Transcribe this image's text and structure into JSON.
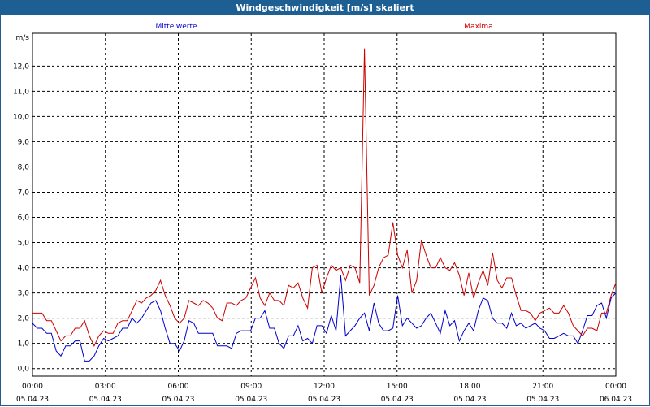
{
  "window": {
    "title": "Windgeschwindigkeit [m/s] skaliert"
  },
  "colors": {
    "mean": "#0000cc",
    "max": "#cc0000",
    "titlebar": "#1d5f93"
  },
  "chart_data": {
    "type": "line",
    "title": "Windgeschwindigkeit [m/s] skaliert",
    "ylabel": "m/s",
    "ylim": [
      -0.3,
      13.3
    ],
    "xlim_hours": [
      0,
      24
    ],
    "grid": true,
    "yticks": [
      "0,0",
      "1,0",
      "2,0",
      "3,0",
      "4,0",
      "5,0",
      "6,0",
      "7,0",
      "8,0",
      "9,0",
      "10,0",
      "11,0",
      "12,0"
    ],
    "xticks": [
      {
        "time": "00:00",
        "date": "05.04.23"
      },
      {
        "time": "03:00",
        "date": "05.04.23"
      },
      {
        "time": "06:00",
        "date": "05.04.23"
      },
      {
        "time": "09:00",
        "date": "05.04.23"
      },
      {
        "time": "12:00",
        "date": "05.04.23"
      },
      {
        "time": "15:00",
        "date": "05.04.23"
      },
      {
        "time": "18:00",
        "date": "05.04.23"
      },
      {
        "time": "21:00",
        "date": "05.04.23"
      },
      {
        "time": "00:00",
        "date": "06.04.23"
      }
    ],
    "series": [
      {
        "name": "Mittelwerte",
        "color": "#0000cc",
        "points": [
          [
            0,
            1.8
          ],
          [
            0.2,
            1.6
          ],
          [
            0.4,
            1.6
          ],
          [
            0.6,
            1.4
          ],
          [
            0.8,
            1.4
          ],
          [
            1,
            0.7
          ],
          [
            1.2,
            0.5
          ],
          [
            1.4,
            0.9
          ],
          [
            1.6,
            0.9
          ],
          [
            1.8,
            1.1
          ],
          [
            2,
            1.1
          ],
          [
            2.2,
            0.3
          ],
          [
            2.4,
            0.3
          ],
          [
            2.6,
            0.5
          ],
          [
            2.8,
            0.9
          ],
          [
            3,
            1.2
          ],
          [
            3.2,
            1.1
          ],
          [
            3.4,
            1.2
          ],
          [
            3.6,
            1.3
          ],
          [
            3.8,
            1.6
          ],
          [
            4,
            1.6
          ],
          [
            4.2,
            2.0
          ],
          [
            4.4,
            1.8
          ],
          [
            4.6,
            2.0
          ],
          [
            4.8,
            2.3
          ],
          [
            5,
            2.6
          ],
          [
            5.2,
            2.7
          ],
          [
            5.4,
            2.3
          ],
          [
            5.6,
            1.6
          ],
          [
            5.8,
            1.0
          ],
          [
            6,
            1.0
          ],
          [
            6.2,
            0.7
          ],
          [
            6.4,
            1.1
          ],
          [
            6.6,
            1.9
          ],
          [
            6.8,
            1.8
          ],
          [
            7,
            1.4
          ],
          [
            7.2,
            1.4
          ],
          [
            7.4,
            1.4
          ],
          [
            7.6,
            1.4
          ],
          [
            7.8,
            0.9
          ],
          [
            8,
            0.9
          ],
          [
            8.2,
            0.9
          ],
          [
            8.4,
            0.8
          ],
          [
            8.6,
            1.4
          ],
          [
            8.8,
            1.5
          ],
          [
            9,
            1.5
          ],
          [
            9.2,
            1.5
          ],
          [
            9.4,
            2.0
          ],
          [
            9.6,
            2.0
          ],
          [
            9.8,
            2.3
          ],
          [
            10,
            1.6
          ],
          [
            10,
            1.6
          ],
          [
            10.2,
            1.6
          ],
          [
            10.4,
            1.0
          ],
          [
            10.6,
            0.8
          ],
          [
            10.8,
            1.3
          ],
          [
            11,
            1.3
          ],
          [
            11.2,
            1.7
          ],
          [
            11.4,
            1.1
          ],
          [
            11.6,
            1.2
          ],
          [
            11.8,
            1.0
          ],
          [
            12,
            1.7
          ],
          [
            12.2,
            1.7
          ],
          [
            12.4,
            1.4
          ],
          [
            12.6,
            2.1
          ],
          [
            12.8,
            1.5
          ],
          [
            13,
            3.7
          ],
          [
            13.2,
            1.3
          ],
          [
            13.4,
            1.5
          ],
          [
            13.6,
            1.7
          ],
          [
            13.8,
            2.0
          ],
          [
            14,
            2.2
          ],
          [
            14.2,
            1.5
          ],
          [
            14.4,
            2.6
          ],
          [
            14.6,
            1.8
          ],
          [
            14.8,
            1.5
          ],
          [
            15,
            1.5
          ],
          [
            15.2,
            1.6
          ],
          [
            15.4,
            2.9
          ],
          [
            15.6,
            1.7
          ],
          [
            15.8,
            2.0
          ],
          [
            16,
            1.8
          ],
          [
            16.2,
            1.6
          ],
          [
            16.4,
            1.7
          ],
          [
            16.6,
            2.0
          ],
          [
            16.8,
            2.2
          ],
          [
            17,
            1.8
          ],
          [
            17.2,
            1.4
          ],
          [
            17.4,
            2.3
          ],
          [
            17.6,
            1.7
          ],
          [
            17.8,
            1.9
          ],
          [
            18,
            1.1
          ],
          [
            18.2,
            1.5
          ],
          [
            18.4,
            1.8
          ],
          [
            18.6,
            1.5
          ],
          [
            18.8,
            2.3
          ],
          [
            19,
            2.8
          ],
          [
            19.2,
            2.7
          ],
          [
            19.4,
            2.0
          ],
          [
            19.6,
            1.8
          ],
          [
            19.8,
            1.8
          ],
          [
            20,
            1.6
          ],
          [
            20.2,
            2.2
          ],
          [
            20.4,
            1.7
          ],
          [
            20.6,
            1.8
          ],
          [
            20.8,
            1.6
          ],
          [
            21,
            1.7
          ],
          [
            21.2,
            1.8
          ],
          [
            21.4,
            1.6
          ],
          [
            21.6,
            1.5
          ],
          [
            21.8,
            1.2
          ],
          [
            22,
            1.2
          ],
          [
            22.2,
            1.3
          ],
          [
            22.4,
            1.4
          ],
          [
            22.6,
            1.3
          ],
          [
            22.8,
            1.3
          ],
          [
            23,
            1.0
          ],
          [
            23.2,
            1.5
          ],
          [
            23.4,
            2.1
          ],
          [
            23.6,
            2.1
          ],
          [
            23.8,
            2.5
          ],
          [
            24,
            2.6
          ],
          [
            24.2,
            2.0
          ],
          [
            24.4,
            2.8
          ],
          [
            24.6,
            3.0
          ]
        ]
      },
      {
        "name": "Maxima",
        "color": "#cc0000",
        "points": [
          [
            0,
            2.2
          ],
          [
            0.2,
            2.2
          ],
          [
            0.4,
            2.2
          ],
          [
            0.6,
            1.9
          ],
          [
            0.8,
            1.9
          ],
          [
            1,
            1.5
          ],
          [
            1.2,
            1.1
          ],
          [
            1.4,
            1.3
          ],
          [
            1.6,
            1.3
          ],
          [
            1.8,
            1.6
          ],
          [
            2,
            1.6
          ],
          [
            2.2,
            1.9
          ],
          [
            2.4,
            1.3
          ],
          [
            2.6,
            0.9
          ],
          [
            2.8,
            1.3
          ],
          [
            3,
            1.5
          ],
          [
            3.2,
            1.4
          ],
          [
            3.4,
            1.4
          ],
          [
            3.6,
            1.8
          ],
          [
            3.8,
            1.9
          ],
          [
            4,
            1.9
          ],
          [
            4.2,
            2.3
          ],
          [
            4.4,
            2.7
          ],
          [
            4.6,
            2.6
          ],
          [
            4.8,
            2.8
          ],
          [
            5,
            2.9
          ],
          [
            5.2,
            3.1
          ],
          [
            5.4,
            3.5
          ],
          [
            5.6,
            2.9
          ],
          [
            5.8,
            2.5
          ],
          [
            6,
            2.0
          ],
          [
            6.2,
            1.8
          ],
          [
            6.4,
            2.0
          ],
          [
            6.6,
            2.7
          ],
          [
            6.8,
            2.6
          ],
          [
            7,
            2.5
          ],
          [
            7.2,
            2.7
          ],
          [
            7.4,
            2.6
          ],
          [
            7.6,
            2.4
          ],
          [
            7.8,
            2.0
          ],
          [
            8,
            1.9
          ],
          [
            8.2,
            2.6
          ],
          [
            8.4,
            2.6
          ],
          [
            8.6,
            2.5
          ],
          [
            8.8,
            2.7
          ],
          [
            9,
            2.8
          ],
          [
            9.2,
            3.2
          ],
          [
            9.4,
            3.6
          ],
          [
            9.6,
            2.8
          ],
          [
            9.8,
            2.5
          ],
          [
            10,
            3.0
          ],
          [
            10.2,
            2.7
          ],
          [
            10.4,
            2.7
          ],
          [
            10.6,
            2.5
          ],
          [
            10.8,
            3.3
          ],
          [
            11,
            3.2
          ],
          [
            11.2,
            3.4
          ],
          [
            11.4,
            2.8
          ],
          [
            11.6,
            2.4
          ],
          [
            11.8,
            4.0
          ],
          [
            12,
            4.1
          ],
          [
            12.2,
            3.0
          ],
          [
            12.4,
            3.6
          ],
          [
            12.6,
            4.1
          ],
          [
            12.8,
            3.9
          ],
          [
            13,
            4.0
          ],
          [
            13.2,
            3.5
          ],
          [
            13.4,
            4.1
          ],
          [
            13.6,
            4.0
          ],
          [
            13.8,
            3.4
          ],
          [
            14,
            12.7
          ],
          [
            14.2,
            2.9
          ],
          [
            14.4,
            3.3
          ],
          [
            14.6,
            4.0
          ],
          [
            14.8,
            4.4
          ],
          [
            15,
            4.5
          ],
          [
            15.2,
            5.8
          ],
          [
            15.4,
            4.5
          ],
          [
            15.6,
            4.0
          ],
          [
            15.8,
            4.7
          ],
          [
            16,
            3.0
          ],
          [
            16.2,
            3.5
          ],
          [
            16.4,
            5.1
          ],
          [
            16.6,
            4.5
          ],
          [
            16.8,
            4.0
          ],
          [
            17,
            4.0
          ],
          [
            17.2,
            4.4
          ],
          [
            17.4,
            4.0
          ],
          [
            17.6,
            3.9
          ],
          [
            17.8,
            4.2
          ],
          [
            18,
            3.7
          ],
          [
            18.2,
            2.9
          ],
          [
            18.4,
            3.8
          ],
          [
            18.6,
            2.8
          ],
          [
            18.8,
            3.4
          ],
          [
            19,
            3.9
          ],
          [
            19.2,
            3.3
          ],
          [
            19.4,
            4.6
          ],
          [
            19.6,
            3.5
          ],
          [
            19.8,
            3.2
          ],
          [
            20,
            3.6
          ],
          [
            20.2,
            3.6
          ],
          [
            20.4,
            2.9
          ],
          [
            20.6,
            2.3
          ],
          [
            20.8,
            2.3
          ],
          [
            21,
            2.2
          ],
          [
            21.2,
            1.9
          ],
          [
            21.4,
            2.2
          ],
          [
            21.6,
            2.3
          ],
          [
            21.8,
            2.4
          ],
          [
            22,
            2.2
          ],
          [
            22.2,
            2.2
          ],
          [
            22.4,
            2.5
          ],
          [
            22.6,
            2.2
          ],
          [
            22.8,
            1.7
          ],
          [
            23,
            1.5
          ],
          [
            23.2,
            1.3
          ],
          [
            23.4,
            1.6
          ],
          [
            23.6,
            1.6
          ],
          [
            23.8,
            1.5
          ],
          [
            24,
            2.2
          ],
          [
            24.2,
            2.2
          ],
          [
            24.4,
            2.9
          ],
          [
            24.6,
            3.4
          ]
        ]
      }
    ]
  }
}
